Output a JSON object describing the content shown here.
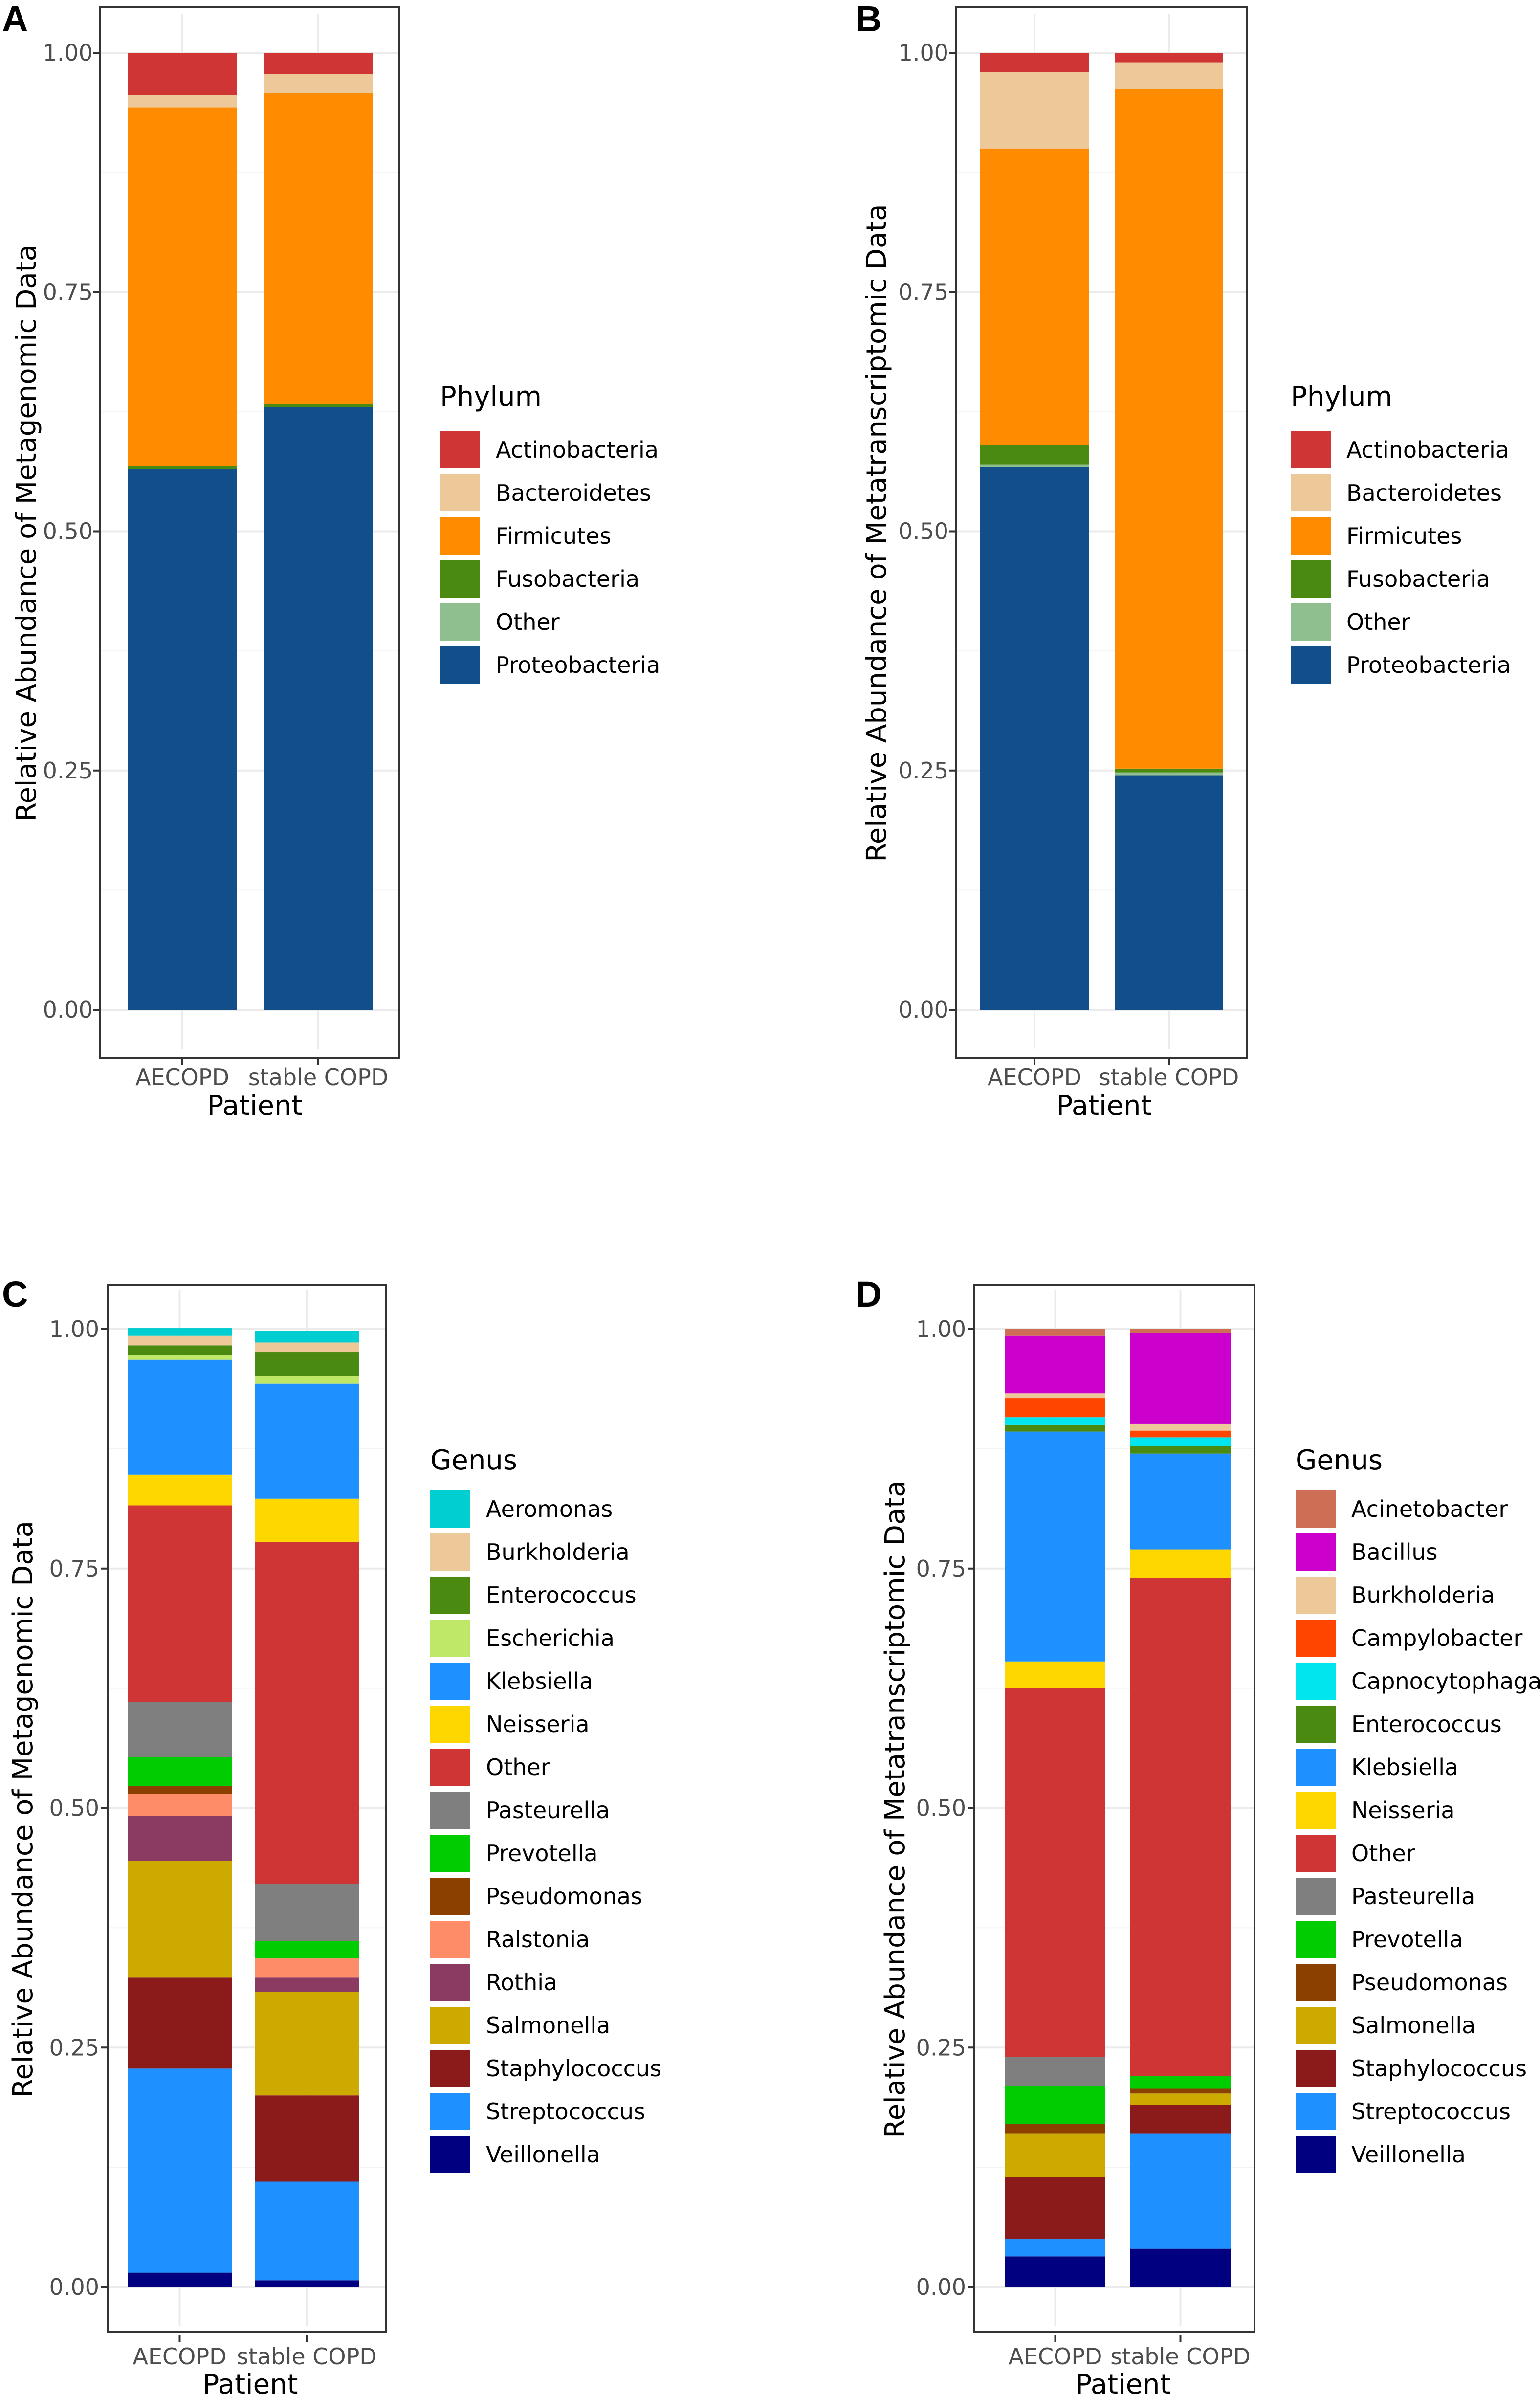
{
  "chart_data": [
    {
      "panel": "A",
      "type": "bar",
      "stacked": true,
      "xlabel": "Patient",
      "ylabel": "Relative Abundance of Metagenomic Data",
      "ylim": [
        0,
        1
      ],
      "yticks": [
        "0.00",
        "0.25",
        "0.50",
        "0.75",
        "1.00"
      ],
      "categories": [
        "AECOPD",
        "stable COPD"
      ],
      "legend_title": "Phylum",
      "legend_order": [
        "Actinobacteria",
        "Bacteroidetes",
        "Firmicutes",
        "Fusobacteria",
        "Other",
        "Proteobacteria"
      ],
      "series": [
        {
          "name": "Proteobacteria",
          "color": "#124e89",
          "values": [
            0.565,
            0.63
          ]
        },
        {
          "name": "Other",
          "color": "#8fbf8f",
          "values": [
            0.0,
            0.0
          ]
        },
        {
          "name": "Fusobacteria",
          "color": "#4a8a10",
          "values": [
            0.003,
            0.003
          ]
        },
        {
          "name": "Firmicutes",
          "color": "#ff8c00",
          "values": [
            0.375,
            0.325
          ]
        },
        {
          "name": "Bacteroidetes",
          "color": "#edc898",
          "values": [
            0.013,
            0.02
          ]
        },
        {
          "name": "Actinobacteria",
          "color": "#d03535",
          "values": [
            0.044,
            0.022
          ]
        }
      ]
    },
    {
      "panel": "B",
      "type": "bar",
      "stacked": true,
      "xlabel": "Patient",
      "ylabel": "Relative Abundance of Metatranscriptomic Data",
      "ylim": [
        0,
        1
      ],
      "yticks": [
        "0.00",
        "0.25",
        "0.50",
        "0.75",
        "1.00"
      ],
      "categories": [
        "AECOPD",
        "stable COPD"
      ],
      "legend_title": "Phylum",
      "legend_order": [
        "Actinobacteria",
        "Bacteroidetes",
        "Firmicutes",
        "Fusobacteria",
        "Other",
        "Proteobacteria"
      ],
      "series": [
        {
          "name": "Proteobacteria",
          "color": "#124e89",
          "values": [
            0.567,
            0.245
          ]
        },
        {
          "name": "Other",
          "color": "#8fbf8f",
          "values": [
            0.003,
            0.003
          ]
        },
        {
          "name": "Fusobacteria",
          "color": "#4a8a10",
          "values": [
            0.02,
            0.004
          ]
        },
        {
          "name": "Firmicutes",
          "color": "#ff8c00",
          "values": [
            0.31,
            0.71
          ]
        },
        {
          "name": "Bacteroidetes",
          "color": "#edc898",
          "values": [
            0.08,
            0.028
          ]
        },
        {
          "name": "Actinobacteria",
          "color": "#d03535",
          "values": [
            0.02,
            0.01
          ]
        }
      ]
    },
    {
      "panel": "C",
      "type": "bar",
      "stacked": true,
      "xlabel": "Patient",
      "ylabel": "Relative Abundance of Metagenomic Data",
      "ylim": [
        0,
        1
      ],
      "yticks": [
        "0.00",
        "0.25",
        "0.50",
        "0.75",
        "1.00"
      ],
      "categories": [
        "AECOPD",
        "stable COPD"
      ],
      "legend_title": "Genus",
      "legend_order": [
        "Aeromonas",
        "Burkholderia",
        "Enterococcus",
        "Escherichia",
        "Klebsiella",
        "Neisseria",
        "Other",
        "Pasteurella",
        "Prevotella",
        "Pseudomonas",
        "Ralstonia",
        "Rothia",
        "Salmonella",
        "Staphylococcus",
        "Streptococcus",
        "Veillonella"
      ],
      "series": [
        {
          "name": "Veillonella",
          "color": "#000080",
          "values": [
            0.015,
            0.007
          ]
        },
        {
          "name": "Streptococcus",
          "color": "#1e90ff",
          "values": [
            0.213,
            0.103
          ]
        },
        {
          "name": "Staphylococcus",
          "color": "#8b1a1a",
          "values": [
            0.095,
            0.09
          ]
        },
        {
          "name": "Salmonella",
          "color": "#cdaa00",
          "values": [
            0.122,
            0.108
          ]
        },
        {
          "name": "Rothia",
          "color": "#8b3a62",
          "values": [
            0.047,
            0.015
          ]
        },
        {
          "name": "Ralstonia",
          "color": "#ff8c69",
          "values": [
            0.023,
            0.02
          ]
        },
        {
          "name": "Pseudomonas",
          "color": "#8b4000",
          "values": [
            0.008,
            0.0
          ]
        },
        {
          "name": "Prevotella",
          "color": "#00cd00",
          "values": [
            0.03,
            0.018
          ]
        },
        {
          "name": "Pasteurella",
          "color": "#7f7f7f",
          "values": [
            0.058,
            0.06
          ]
        },
        {
          "name": "Other",
          "color": "#d03535",
          "values": [
            0.205,
            0.357
          ]
        },
        {
          "name": "Neisseria",
          "color": "#ffd700",
          "values": [
            0.032,
            0.045
          ]
        },
        {
          "name": "Klebsiella",
          "color": "#1e90ff",
          "values": [
            0.12,
            0.12
          ]
        },
        {
          "name": "Escherichia",
          "color": "#c0e868",
          "values": [
            0.005,
            0.008
          ]
        },
        {
          "name": "Enterococcus",
          "color": "#4a8a10",
          "values": [
            0.01,
            0.025
          ]
        },
        {
          "name": "Burkholderia",
          "color": "#edc898",
          "values": [
            0.01,
            0.01
          ]
        },
        {
          "name": "Aeromonas",
          "color": "#00ced1",
          "values": [
            0.008,
            0.012
          ]
        }
      ]
    },
    {
      "panel": "D",
      "type": "bar",
      "stacked": true,
      "xlabel": "Patient",
      "ylabel": "Relative Abundance of Metatranscriptomic Data",
      "ylim": [
        0,
        1
      ],
      "yticks": [
        "0.00",
        "0.25",
        "0.50",
        "0.75",
        "1.00"
      ],
      "categories": [
        "AECOPD",
        "stable COPD"
      ],
      "legend_title": "Genus",
      "legend_order": [
        "Acinetobacter",
        "Bacillus",
        "Burkholderia",
        "Campylobacter",
        "Capnocytophaga",
        "Enterococcus",
        "Klebsiella",
        "Neisseria",
        "Other",
        "Pasteurella",
        "Prevotella",
        "Pseudomonas",
        "Salmonella",
        "Staphylococcus",
        "Streptococcus",
        "Veillonella"
      ],
      "series": [
        {
          "name": "Veillonella",
          "color": "#000080",
          "values": [
            0.032,
            0.04
          ]
        },
        {
          "name": "Streptococcus",
          "color": "#1e90ff",
          "values": [
            0.018,
            0.12
          ]
        },
        {
          "name": "Staphylococcus",
          "color": "#8b1a1a",
          "values": [
            0.065,
            0.03
          ]
        },
        {
          "name": "Salmonella",
          "color": "#cdaa00",
          "values": [
            0.045,
            0.012
          ]
        },
        {
          "name": "Pseudomonas",
          "color": "#8b4000",
          "values": [
            0.01,
            0.005
          ]
        },
        {
          "name": "Prevotella",
          "color": "#00cd00",
          "values": [
            0.04,
            0.013
          ]
        },
        {
          "name": "Pasteurella",
          "color": "#7f7f7f",
          "values": [
            0.03,
            0.0
          ]
        },
        {
          "name": "Other",
          "color": "#d03535",
          "values": [
            0.385,
            0.52
          ]
        },
        {
          "name": "Neisseria",
          "color": "#ffd700",
          "values": [
            0.028,
            0.03
          ]
        },
        {
          "name": "Klebsiella",
          "color": "#1e90ff",
          "values": [
            0.24,
            0.1
          ]
        },
        {
          "name": "Enterococcus",
          "color": "#4a8a10",
          "values": [
            0.007,
            0.008
          ]
        },
        {
          "name": "Capnocytophaga",
          "color": "#00e5ee",
          "values": [
            0.008,
            0.009
          ]
        },
        {
          "name": "Campylobacter",
          "color": "#ff4500",
          "values": [
            0.02,
            0.007
          ]
        },
        {
          "name": "Burkholderia",
          "color": "#edc898",
          "values": [
            0.005,
            0.007
          ]
        },
        {
          "name": "Bacillus",
          "color": "#cc00cc",
          "values": [
            0.06,
            0.095
          ]
        },
        {
          "name": "Acinetobacter",
          "color": "#cd6e55",
          "values": [
            0.007,
            0.004
          ]
        }
      ]
    }
  ]
}
